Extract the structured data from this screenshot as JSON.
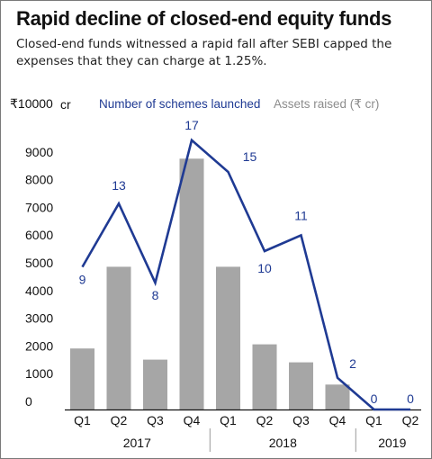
{
  "header": {
    "title": "Rapid decline of closed-end equity funds",
    "subtitle": "Closed-end funds witnessed a rapid fall after SEBI capped the expenses that they can charge at 1.25%."
  },
  "colors": {
    "bars": "#a6a6a6",
    "line": "#1f3a93",
    "text": "#111111"
  },
  "chart_data": {
    "type": "bar",
    "categories": [
      "Q1",
      "Q2",
      "Q3",
      "Q4",
      "Q1",
      "Q2",
      "Q3",
      "Q4",
      "Q1",
      "Q2"
    ],
    "year_groups": [
      {
        "label": "2017",
        "quarters": 4
      },
      {
        "label": "2018",
        "quarters": 4
      },
      {
        "label": "2019",
        "quarters": 2
      }
    ],
    "ylim": [
      0,
      10000
    ],
    "y_ticks": [
      0,
      1000,
      2000,
      3000,
      4000,
      5000,
      6000,
      7000,
      8000,
      9000,
      10000
    ],
    "y_tick_labels": [
      "0",
      "1000",
      "2000",
      "3000",
      "4000",
      "5000",
      "6000",
      "7000",
      "8000",
      "9000",
      "₹10000"
    ],
    "y_unit": "cr",
    "series": [
      {
        "name": "Assets raised (₹ cr)",
        "type": "bar",
        "values": [
          2200,
          5150,
          1800,
          9050,
          5150,
          2350,
          1700,
          900,
          0,
          0
        ]
      },
      {
        "name": "Number of schemes launched",
        "type": "line",
        "values": [
          9,
          13,
          8,
          17,
          15,
          10,
          11,
          2,
          0,
          0
        ],
        "labels": [
          "9",
          "13",
          "8",
          "17",
          "15",
          "10",
          "11",
          "2",
          "0",
          "0"
        ]
      }
    ]
  }
}
